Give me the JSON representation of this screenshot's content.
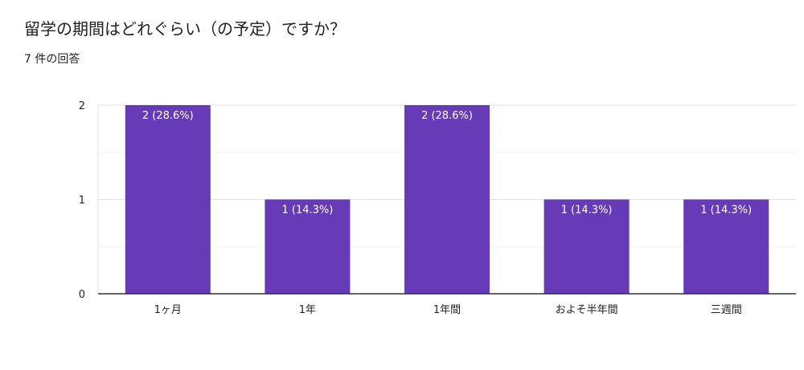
{
  "question": {
    "title": "留学の期間はどれぐらい（の予定）ですか？",
    "response_count": "7 件の回答"
  },
  "colors": {
    "bar": "#673ab7",
    "grid": "#e6e6e6",
    "axis": "#333333"
  },
  "chart_data": {
    "type": "bar",
    "categories": [
      "1ヶ月",
      "1年",
      "1年間",
      "およそ半年間",
      "三週間"
    ],
    "values": [
      2,
      1,
      2,
      1,
      1
    ],
    "data_labels": [
      "2 (28.6%)",
      "1 (14.3%)",
      "2 (28.6%)",
      "1 (14.3%)",
      "1 (14.3%)"
    ],
    "y_ticks": [
      "0",
      "1",
      "2"
    ],
    "ylim": [
      0,
      2
    ],
    "grid": true,
    "legend": "none"
  }
}
